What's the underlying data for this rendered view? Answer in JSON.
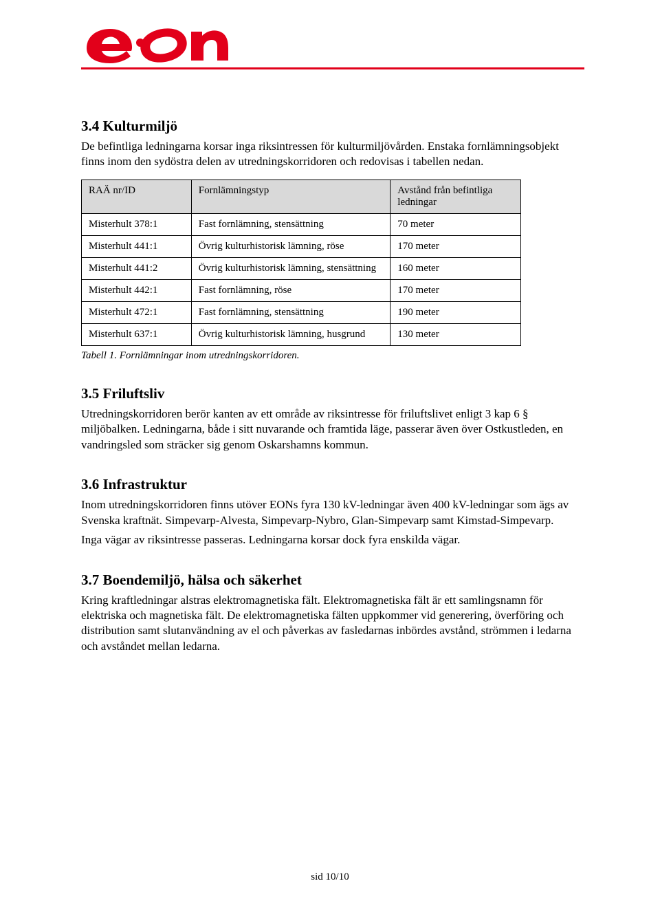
{
  "brand": {
    "accent": "#e2001a"
  },
  "s34": {
    "title": "3.4 Kulturmiljö",
    "p1": "De befintliga ledningarna korsar inga riksintressen för kulturmiljövården. Enstaka fornlämningsobjekt finns inom den sydöstra delen av utredningskorridoren och redovisas i tabellen nedan."
  },
  "table": {
    "columns": [
      "RAÄ nr/ID",
      "Fornlämningstyp",
      "Avstånd från befintliga ledningar"
    ],
    "rows": [
      [
        "Misterhult 378:1",
        "Fast fornlämning, stensättning",
        "70 meter"
      ],
      [
        "Misterhult 441:1",
        "Övrig kulturhistorisk lämning, röse",
        "170 meter"
      ],
      [
        "Misterhult 441:2",
        "Övrig kulturhistorisk lämning, stensättning",
        "160 meter"
      ],
      [
        "Misterhult 442:1",
        "Fast fornlämning, röse",
        "170 meter"
      ],
      [
        "Misterhult 472:1",
        "Fast fornlämning, stensättning",
        "190 meter"
      ],
      [
        "Misterhult 637:1",
        "Övrig kulturhistorisk lämning, husgrund",
        "130 meter"
      ]
    ],
    "caption": "Tabell 1. Fornlämningar inom utredningskorridoren."
  },
  "s35": {
    "title": "3.5 Friluftsliv",
    "p1": "Utredningskorridoren berör kanten av ett område av riksintresse för friluftslivet enligt 3 kap 6 § miljöbalken. Ledningarna, både i sitt nuvarande och framtida läge, passerar även över Ostkustleden, en vandringsled som sträcker sig genom Oskarshamns kommun."
  },
  "s36": {
    "title": "3.6 Infrastruktur",
    "p1": "Inom utredningskorridoren finns utöver EONs fyra 130 kV-ledningar även 400 kV-ledningar som ägs av Svenska kraftnät. Simpevarp-Alvesta, Simpevarp-Nybro, Glan-Simpevarp  samt Kimstad-Simpevarp.",
    "p2": "Inga vägar av riksintresse passeras. Ledningarna korsar dock fyra enskilda vägar."
  },
  "s37": {
    "title": "3.7 Boendemiljö, hälsa och säkerhet",
    "p1": "Kring kraftledningar alstras elektromagnetiska fält. Elektromagnetiska fält är ett samlingsnamn för elektriska och magnetiska fält. De elektromagnetiska fälten uppkommer vid generering, överföring och distribution samt slutanvändning av el och påverkas av fasledarnas inbördes avstånd, strömmen i ledarna och avståndet mellan ledarna."
  },
  "footer": "sid 10/10"
}
